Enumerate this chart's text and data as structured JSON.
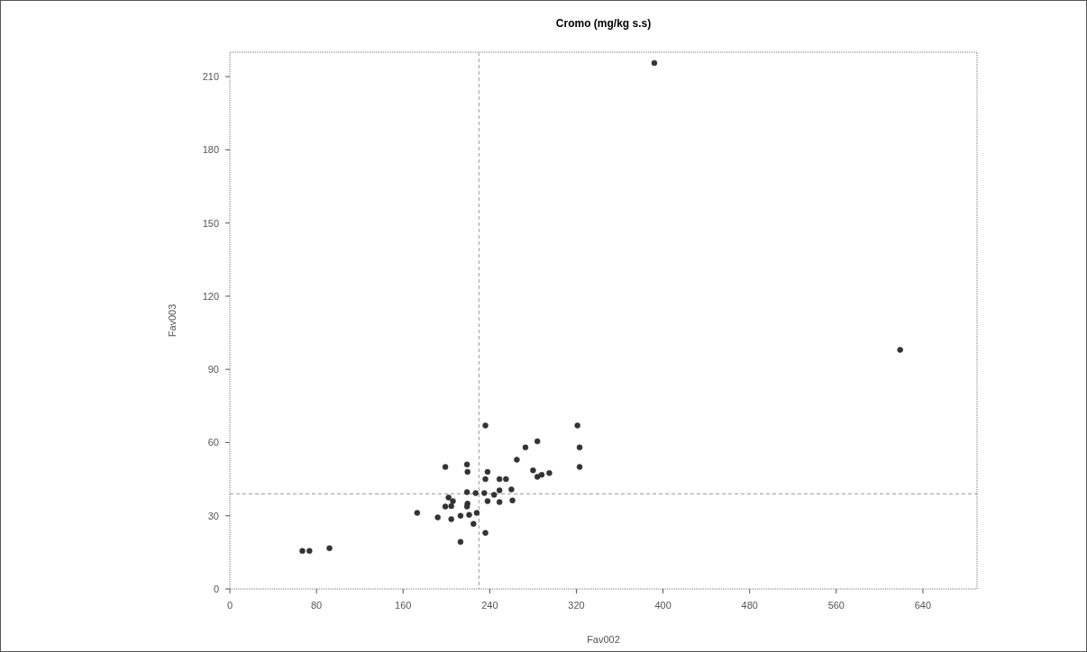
{
  "chart_data": {
    "type": "scatter",
    "title": "Cromo (mg/kg s.s)",
    "xlabel": "Fav002",
    "ylabel": "Fav003",
    "xlim": [
      0,
      690
    ],
    "ylim": [
      0,
      220
    ],
    "xticks": [
      0,
      80,
      160,
      240,
      320,
      400,
      480,
      560,
      640
    ],
    "yticks": [
      0,
      30,
      60,
      90,
      120,
      150,
      180,
      210
    ],
    "grid": false,
    "marker": "circle",
    "ref_lines": [
      {
        "axis": "x",
        "value": 230,
        "color": "#999999",
        "line_style": "dashed"
      },
      {
        "axis": "y",
        "value": 39,
        "color": "#999999",
        "line_style": "dashed"
      }
    ],
    "series": [
      {
        "color": "#333333",
        "x": [
          392,
          619,
          236,
          321,
          284,
          273,
          323,
          265,
          323,
          199,
          219,
          219.5,
          280,
          288,
          295,
          284,
          238,
          236,
          249,
          255,
          249,
          260,
          219,
          227,
          235,
          244,
          261,
          249,
          238,
          202,
          206,
          199,
          204.5,
          219.5,
          219,
          221,
          228,
          213,
          204.5,
          192,
          173,
          225,
          236,
          213,
          92,
          73.5,
          67
        ],
        "values": [
          215.6,
          98,
          67,
          67,
          60.5,
          58,
          58,
          53,
          50,
          50,
          51,
          48,
          48.6,
          46.8,
          47.5,
          46,
          48,
          45,
          45,
          45,
          40.4,
          40.8,
          39.7,
          39.3,
          39.3,
          38.6,
          36.3,
          35.6,
          36,
          37.5,
          36,
          33.8,
          34,
          35,
          33.8,
          30.4,
          31.2,
          30,
          28.6,
          29.3,
          31.2,
          26.7,
          23,
          19.3,
          16.7,
          15.6,
          15.6
        ]
      }
    ]
  }
}
